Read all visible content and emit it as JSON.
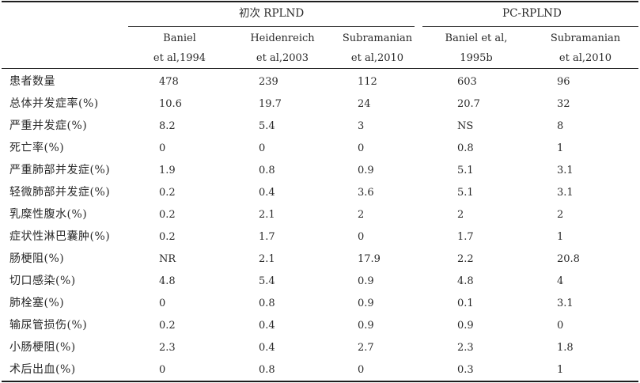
{
  "groups": [
    {
      "label": "初次 RPLND"
    },
    {
      "label": "PC-RPLND"
    }
  ],
  "columns": [
    {
      "line1": "Baniel",
      "line2": "et al,1994"
    },
    {
      "line1": "Heidenreich",
      "line2": "et al,2003"
    },
    {
      "line1": "Subramanian",
      "line2": "et al,2010"
    },
    {
      "line1": "Baniel et al,",
      "line2": "1995b"
    },
    {
      "line1": "Subramanian",
      "line2": "et al,2010"
    }
  ],
  "rows": [
    {
      "label": "患者数量",
      "values": [
        "478",
        "239",
        "112",
        "603",
        "96"
      ]
    },
    {
      "label": "总体并发症率(%)",
      "values": [
        "10.6",
        "19.7",
        "24",
        "20.7",
        "32"
      ]
    },
    {
      "label": "严重并发症(%)",
      "values": [
        "8.2",
        "5.4",
        "3",
        "NS",
        "8"
      ]
    },
    {
      "label": "死亡率(%)",
      "values": [
        "0",
        "0",
        "0",
        "0.8",
        "1"
      ]
    },
    {
      "label": "严重肺部并发症(%)",
      "values": [
        "1.9",
        "0.8",
        "0.9",
        "5.1",
        "3.1"
      ]
    },
    {
      "label": "轻微肺部并发症(%)",
      "values": [
        "0.2",
        "0.4",
        "3.6",
        "5.1",
        "3.1"
      ]
    },
    {
      "label": "乳糜性腹水(%)",
      "values": [
        "0.2",
        "2.1",
        "2",
        "2",
        "2"
      ]
    },
    {
      "label": "症状性淋巴囊肿(%)",
      "values": [
        "0.2",
        "1.7",
        "0",
        "1.7",
        "1"
      ]
    },
    {
      "label": "肠梗阻(%)",
      "values": [
        "NR",
        "2.1",
        "17.9",
        "2.2",
        "20.8"
      ]
    },
    {
      "label": "切口感染(%)",
      "values": [
        "4.8",
        "5.4",
        "0.9",
        "4.8",
        "4"
      ]
    },
    {
      "label": "肺栓塞(%)",
      "values": [
        "0",
        "0.8",
        "0.9",
        "0.1",
        "3.1"
      ]
    },
    {
      "label": "输尿管损伤(%)",
      "values": [
        "0.2",
        "0.4",
        "0.9",
        "0.9",
        "0"
      ]
    },
    {
      "label": "小肠梗阻(%)",
      "values": [
        "2.3",
        "0.4",
        "2.7",
        "2.3",
        "1.8"
      ]
    },
    {
      "label": "术后出血(%)",
      "values": [
        "0",
        "0.8",
        "0",
        "0.3",
        "1"
      ]
    }
  ]
}
